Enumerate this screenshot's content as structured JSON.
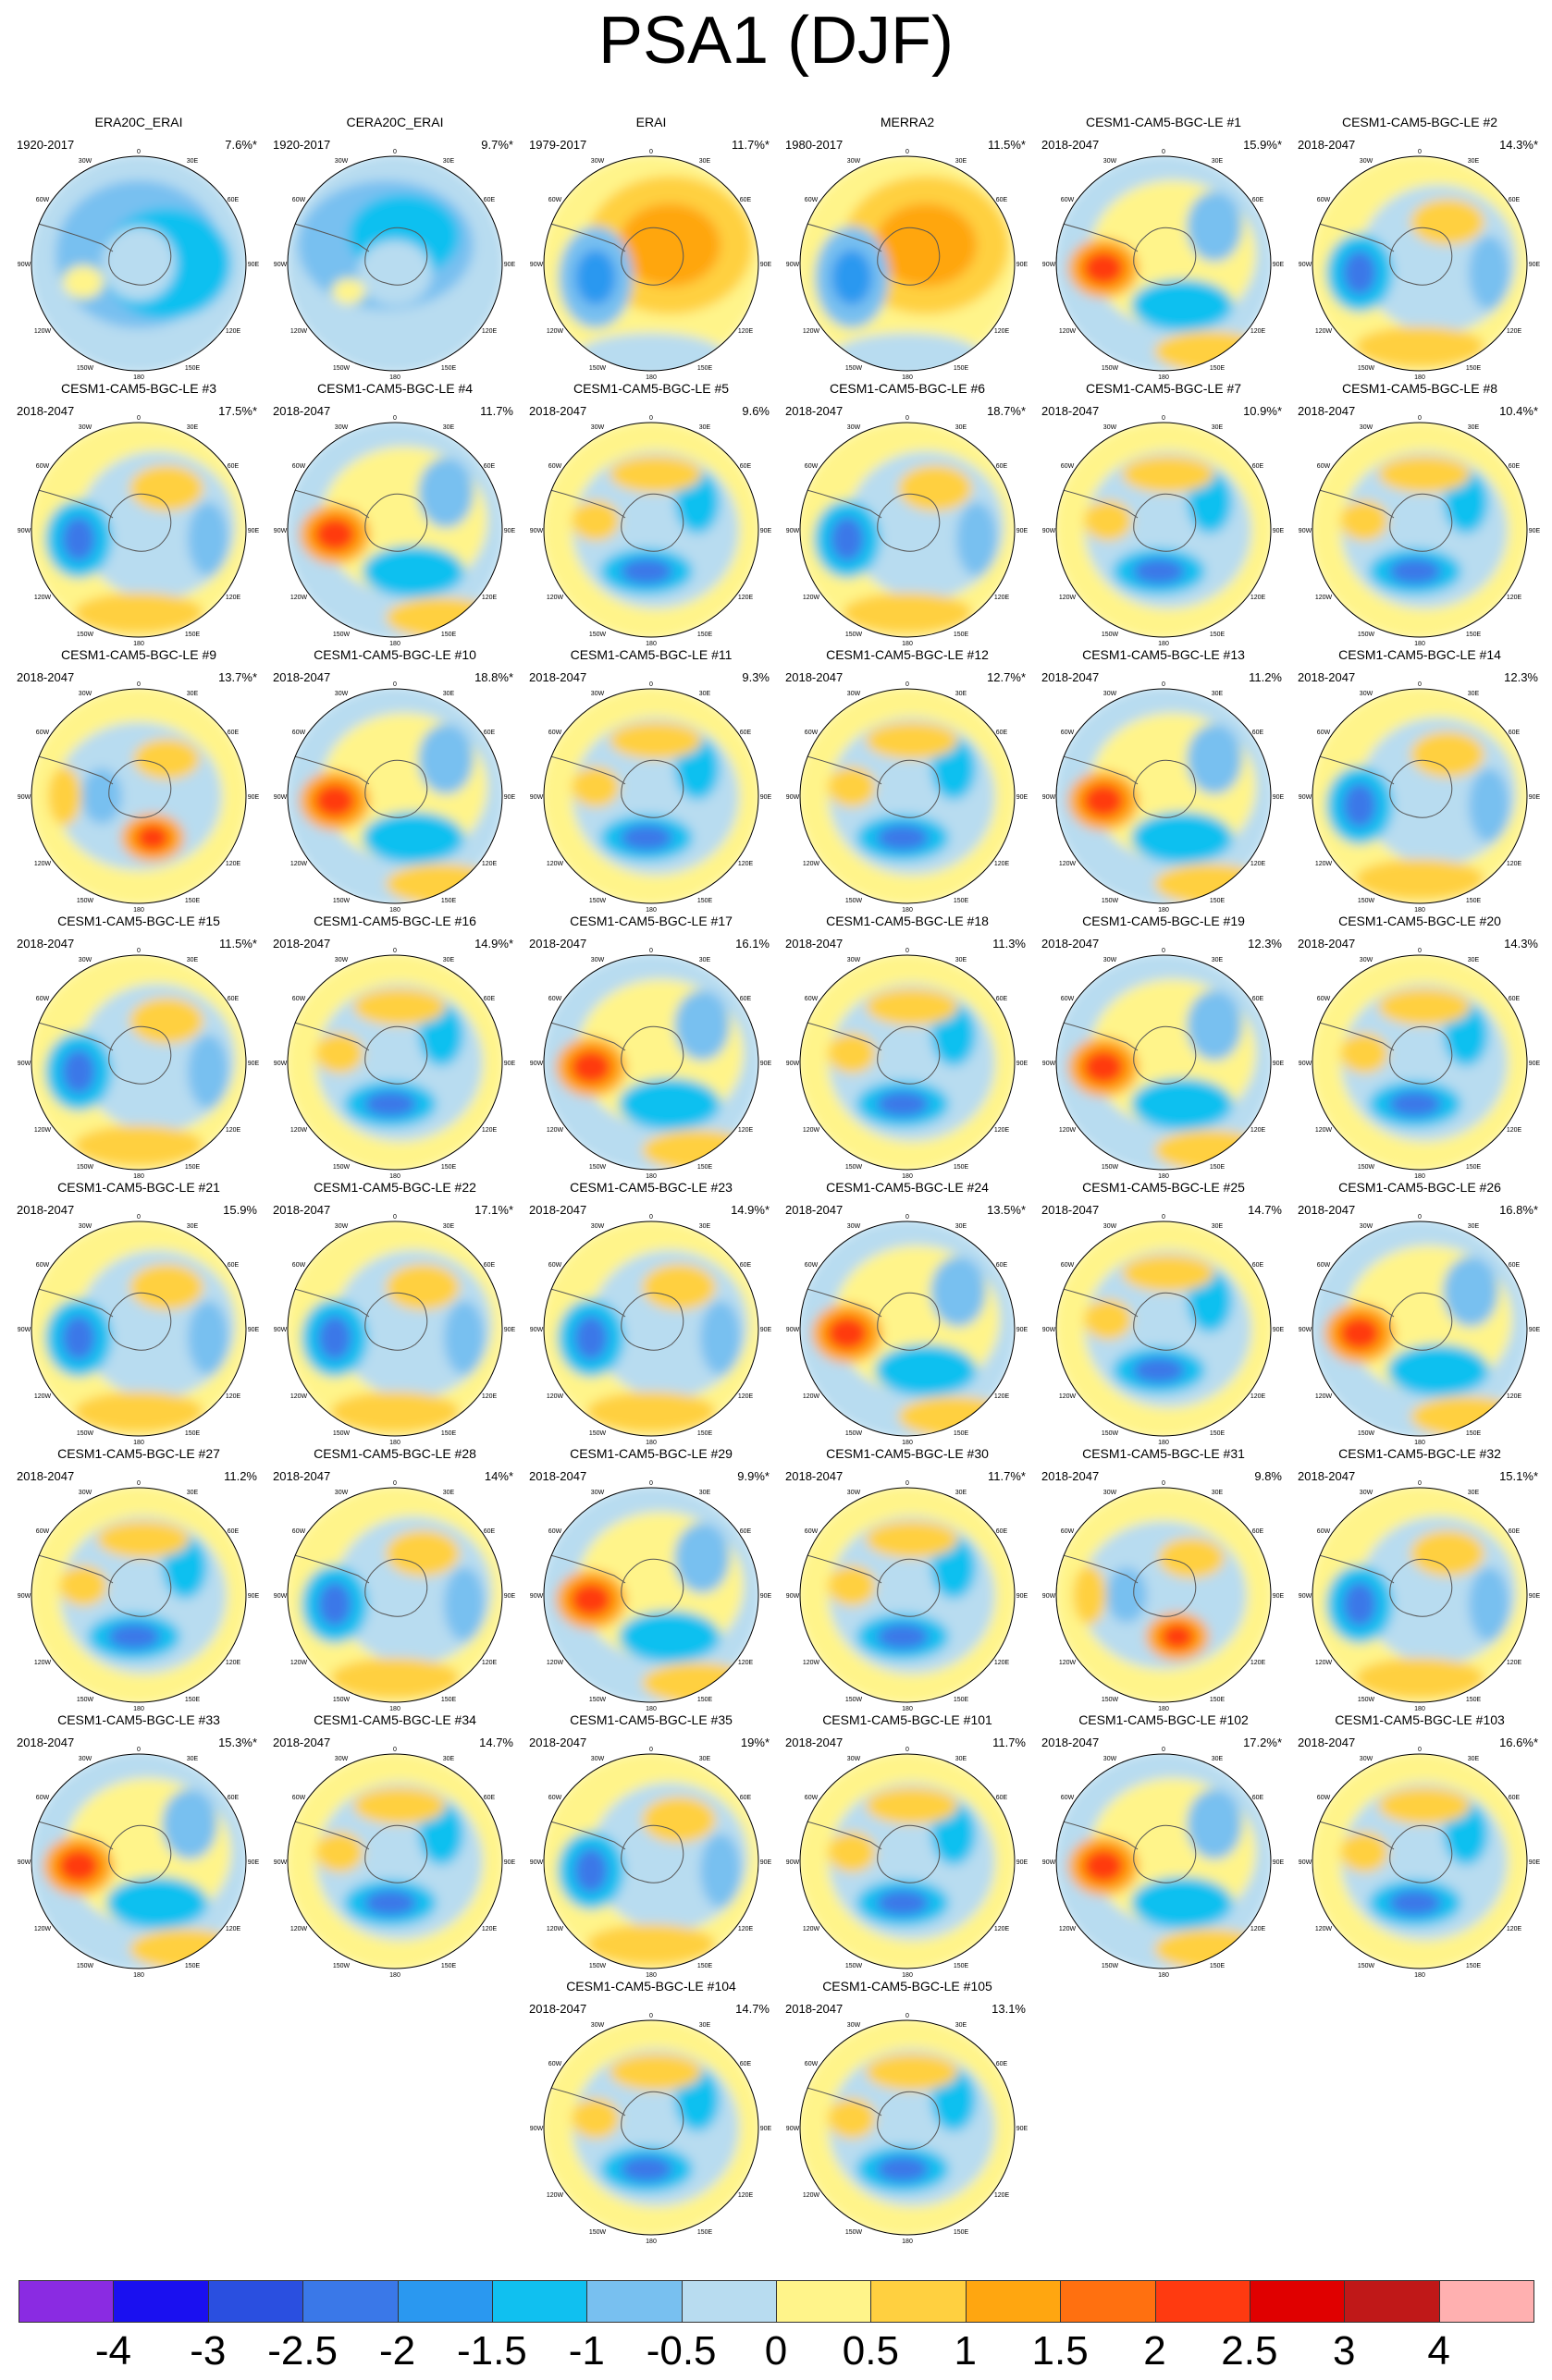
{
  "title": "PSA1 (DJF)",
  "map_axis_labels": {
    "top": "0",
    "top_right": "30E",
    "right_upper": "60E",
    "right": "90E",
    "right_lower": "120E",
    "bottom_right": "150E",
    "bottom": "180",
    "bottom_left": "150W",
    "left_lower": "120W",
    "left": "90W",
    "left_upper": "60W",
    "top_left": "30W"
  },
  "panels": [
    {
      "name": "ERA20C_ERAI",
      "years": "1920-2017",
      "pct": "7.6%*",
      "pattern": "obs_weak"
    },
    {
      "name": "CERA20C_ERAI",
      "years": "1920-2017",
      "pct": "9.7%*",
      "pattern": "obs_weak2"
    },
    {
      "name": "ERAI",
      "years": "1979-2017",
      "pct": "11.7%*",
      "pattern": "obs_ring"
    },
    {
      "name": "MERRA2",
      "years": "1980-2017",
      "pct": "11.5%*",
      "pattern": "obs_ring"
    },
    {
      "name": "CESM1-CAM5-BGC-LE #1",
      "years": "2018-2047",
      "pct": "15.9%*",
      "pattern": "red_west"
    },
    {
      "name": "CESM1-CAM5-BGC-LE #2",
      "years": "2018-2047",
      "pct": "14.3%*",
      "pattern": "blue_west"
    },
    {
      "name": "CESM1-CAM5-BGC-LE #3",
      "years": "2018-2047",
      "pct": "17.5%*",
      "pattern": "blue_west"
    },
    {
      "name": "CESM1-CAM5-BGC-LE #4",
      "years": "2018-2047",
      "pct": "11.7%",
      "pattern": "red_west"
    },
    {
      "name": "CESM1-CAM5-BGC-LE #5",
      "years": "2018-2047",
      "pct": "9.6%",
      "pattern": "blue_south"
    },
    {
      "name": "CESM1-CAM5-BGC-LE #6",
      "years": "2018-2047",
      "pct": "18.7%*",
      "pattern": "blue_west"
    },
    {
      "name": "CESM1-CAM5-BGC-LE #7",
      "years": "2018-2047",
      "pct": "10.9%*",
      "pattern": "blue_south"
    },
    {
      "name": "CESM1-CAM5-BGC-LE #8",
      "years": "2018-2047",
      "pct": "10.4%*",
      "pattern": "blue_south"
    },
    {
      "name": "CESM1-CAM5-BGC-LE #9",
      "years": "2018-2047",
      "pct": "13.7%*",
      "pattern": "red_south"
    },
    {
      "name": "CESM1-CAM5-BGC-LE #10",
      "years": "2018-2047",
      "pct": "18.8%*",
      "pattern": "red_west"
    },
    {
      "name": "CESM1-CAM5-BGC-LE #11",
      "years": "2018-2047",
      "pct": "9.3%",
      "pattern": "blue_south"
    },
    {
      "name": "CESM1-CAM5-BGC-LE #12",
      "years": "2018-2047",
      "pct": "12.7%*",
      "pattern": "blue_south"
    },
    {
      "name": "CESM1-CAM5-BGC-LE #13",
      "years": "2018-2047",
      "pct": "11.2%",
      "pattern": "red_west"
    },
    {
      "name": "CESM1-CAM5-BGC-LE #14",
      "years": "2018-2047",
      "pct": "12.3%",
      "pattern": "blue_west"
    },
    {
      "name": "CESM1-CAM5-BGC-LE #15",
      "years": "2018-2047",
      "pct": "11.5%*",
      "pattern": "blue_west"
    },
    {
      "name": "CESM1-CAM5-BGC-LE #16",
      "years": "2018-2047",
      "pct": "14.9%*",
      "pattern": "blue_south"
    },
    {
      "name": "CESM1-CAM5-BGC-LE #17",
      "years": "2018-2047",
      "pct": "16.1%",
      "pattern": "red_west"
    },
    {
      "name": "CESM1-CAM5-BGC-LE #18",
      "years": "2018-2047",
      "pct": "11.3%",
      "pattern": "blue_south"
    },
    {
      "name": "CESM1-CAM5-BGC-LE #19",
      "years": "2018-2047",
      "pct": "12.3%",
      "pattern": "red_west"
    },
    {
      "name": "CESM1-CAM5-BGC-LE #20",
      "years": "2018-2047",
      "pct": "14.3%",
      "pattern": "blue_south"
    },
    {
      "name": "CESM1-CAM5-BGC-LE #21",
      "years": "2018-2047",
      "pct": "15.9%",
      "pattern": "blue_west"
    },
    {
      "name": "CESM1-CAM5-BGC-LE #22",
      "years": "2018-2047",
      "pct": "17.1%*",
      "pattern": "blue_west"
    },
    {
      "name": "CESM1-CAM5-BGC-LE #23",
      "years": "2018-2047",
      "pct": "14.9%*",
      "pattern": "blue_west"
    },
    {
      "name": "CESM1-CAM5-BGC-LE #24",
      "years": "2018-2047",
      "pct": "13.5%*",
      "pattern": "red_west"
    },
    {
      "name": "CESM1-CAM5-BGC-LE #25",
      "years": "2018-2047",
      "pct": "14.7%",
      "pattern": "blue_south"
    },
    {
      "name": "CESM1-CAM5-BGC-LE #26",
      "years": "2018-2047",
      "pct": "16.8%*",
      "pattern": "red_west"
    },
    {
      "name": "CESM1-CAM5-BGC-LE #27",
      "years": "2018-2047",
      "pct": "11.2%",
      "pattern": "blue_south"
    },
    {
      "name": "CESM1-CAM5-BGC-LE #28",
      "years": "2018-2047",
      "pct": "14%*",
      "pattern": "blue_west"
    },
    {
      "name": "CESM1-CAM5-BGC-LE #29",
      "years": "2018-2047",
      "pct": "9.9%*",
      "pattern": "red_west"
    },
    {
      "name": "CESM1-CAM5-BGC-LE #30",
      "years": "2018-2047",
      "pct": "11.7%*",
      "pattern": "blue_south"
    },
    {
      "name": "CESM1-CAM5-BGC-LE #31",
      "years": "2018-2047",
      "pct": "9.8%",
      "pattern": "red_south"
    },
    {
      "name": "CESM1-CAM5-BGC-LE #32",
      "years": "2018-2047",
      "pct": "15.1%*",
      "pattern": "blue_west"
    },
    {
      "name": "CESM1-CAM5-BGC-LE #33",
      "years": "2018-2047",
      "pct": "15.3%*",
      "pattern": "red_west"
    },
    {
      "name": "CESM1-CAM5-BGC-LE #34",
      "years": "2018-2047",
      "pct": "14.7%",
      "pattern": "blue_south"
    },
    {
      "name": "CESM1-CAM5-BGC-LE #35",
      "years": "2018-2047",
      "pct": "19%*",
      "pattern": "blue_west"
    },
    {
      "name": "CESM1-CAM5-BGC-LE #101",
      "years": "2018-2047",
      "pct": "11.7%",
      "pattern": "blue_south"
    },
    {
      "name": "CESM1-CAM5-BGC-LE #102",
      "years": "2018-2047",
      "pct": "17.2%*",
      "pattern": "red_west"
    },
    {
      "name": "CESM1-CAM5-BGC-LE #103",
      "years": "2018-2047",
      "pct": "16.6%*",
      "pattern": "blue_south"
    },
    {
      "name": "CESM1-CAM5-BGC-LE #104",
      "years": "2018-2047",
      "pct": "14.7%",
      "pattern": "blue_south"
    },
    {
      "name": "CESM1-CAM5-BGC-LE #105",
      "years": "2018-2047",
      "pct": "13.1%",
      "pattern": "blue_south"
    }
  ],
  "colorbar": {
    "colors": [
      "#8a2be2",
      "#1a10f0",
      "#2a4fe0",
      "#3a78e8",
      "#2a98f0",
      "#10c0f0",
      "#78c0f0",
      "#b8dcf0",
      "#fff48a",
      "#ffd040",
      "#ffa610",
      "#ff7010",
      "#ff3a10",
      "#e00000",
      "#c01818",
      "#ffb0b0"
    ],
    "labels": [
      "-4",
      "-3",
      "-2.5",
      "-2",
      "-1.5",
      "-1",
      "-0.5",
      "0",
      "0.5",
      "1",
      "1.5",
      "2",
      "2.5",
      "3",
      "4"
    ]
  }
}
